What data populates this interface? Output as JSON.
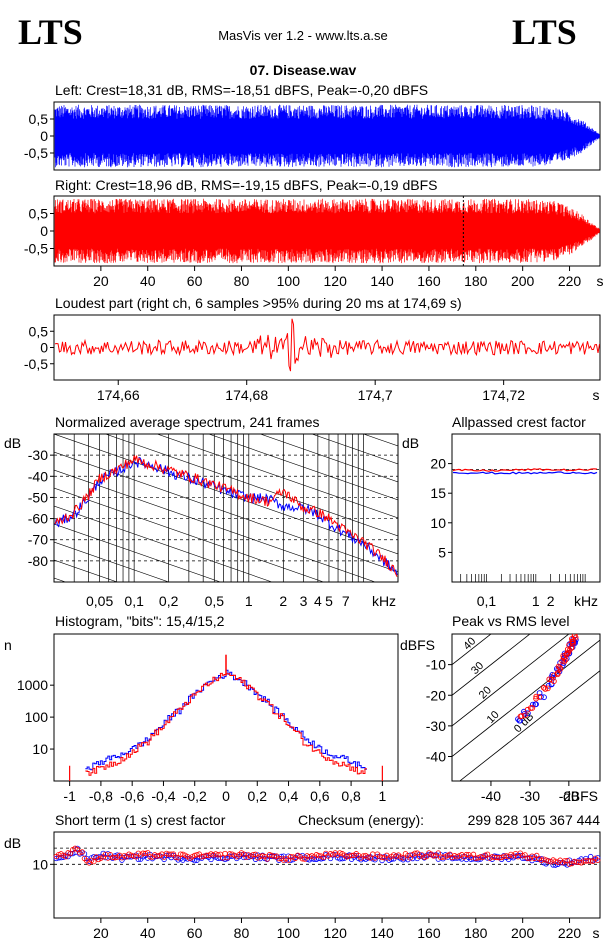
{
  "header": {
    "logo_left": "LTS",
    "logo_right": "LTS",
    "app_title": "MasVis ver 1.2 - www.lts.a.se",
    "file_name": "07. Disease.wav"
  },
  "colors": {
    "left": "#0000ff",
    "right": "#ff0000",
    "axis": "#000000"
  },
  "chart_data": [
    {
      "id": "left-waveform",
      "type": "area",
      "title": "Left: Crest=18,31 dB, RMS=-18,51 dBFS, Peak=-0,20 dBFS",
      "channel": "left",
      "ylim": [
        -1,
        1
      ],
      "y_ticks": [
        "0,5",
        "0",
        "-0,5"
      ],
      "y_tick_values": [
        0.5,
        0,
        -0.5
      ],
      "xlim": [
        0,
        233
      ],
      "envelope": {
        "x": [
          0,
          200,
          215,
          225,
          233
        ],
        "amplitude": [
          0.92,
          0.92,
          0.85,
          0.5,
          0.05
        ]
      }
    },
    {
      "id": "right-waveform",
      "type": "area",
      "title": "Right: Crest=18,96 dB, RMS=-19,15 dBFS, Peak=-0,19 dBFS",
      "channel": "right",
      "ylim": [
        -1,
        1
      ],
      "y_ticks": [
        "0,5",
        "0",
        "-0,5"
      ],
      "y_tick_values": [
        0.5,
        0,
        -0.5
      ],
      "xlim": [
        0,
        233
      ],
      "x_ticks": [
        "20",
        "40",
        "60",
        "80",
        "100",
        "120",
        "140",
        "160",
        "180",
        "200",
        "220",
        "s"
      ],
      "x_tick_values": [
        20,
        40,
        60,
        80,
        100,
        120,
        140,
        160,
        180,
        200,
        220
      ],
      "marker_x": 174.69,
      "envelope": {
        "x": [
          0,
          200,
          215,
          225,
          233
        ],
        "amplitude": [
          0.92,
          0.92,
          0.85,
          0.5,
          0.05
        ]
      }
    },
    {
      "id": "loudest-part",
      "type": "line",
      "title": "Loudest part (right ch, 6 samples >95% during 20 ms at 174,69 s)",
      "channel": "right",
      "ylim": [
        -1,
        1
      ],
      "y_ticks": [
        "0,5",
        "0",
        "-0,5"
      ],
      "y_tick_values": [
        0.5,
        0,
        -0.5
      ],
      "xlim": [
        174.65,
        174.735
      ],
      "x_ticks": [
        "174,66",
        "174,68",
        "174,7",
        "174,72",
        "s"
      ],
      "x_tick_values": [
        174.66,
        174.68,
        174.7,
        174.72
      ],
      "peak_x": 174.687,
      "peak_values": [
        0.92,
        -0.85
      ]
    },
    {
      "id": "average-spectrum",
      "type": "line",
      "title": "Normalized average spectrum, 241 frames",
      "ylabel": "dB",
      "xlabel": "kHz",
      "y_ticks": [
        "-30",
        "-40",
        "-50",
        "-60",
        "-70",
        "-80"
      ],
      "y_tick_values": [
        -30,
        -40,
        -50,
        -60,
        -70,
        -80
      ],
      "ylim": [
        -90,
        -20
      ],
      "x_ticks": [
        "0,05",
        "0,1",
        "0,2",
        "0,5",
        "1",
        "2",
        "3",
        "4",
        "5",
        "7",
        "kHz"
      ],
      "x_tick_values": [
        0.05,
        0.1,
        0.2,
        0.5,
        1,
        2,
        3,
        4,
        5,
        7
      ],
      "xlim": [
        0.02,
        20
      ],
      "x_log": true,
      "series": [
        {
          "channel": "left",
          "x": [
            0.02,
            0.03,
            0.04,
            0.05,
            0.07,
            0.1,
            0.15,
            0.2,
            0.3,
            0.5,
            0.7,
            1,
            1.5,
            2,
            3,
            4,
            5,
            7,
            10,
            15,
            20
          ],
          "y": [
            -63,
            -58,
            -50,
            -42,
            -38,
            -33,
            -35,
            -38,
            -41,
            -45,
            -48,
            -50,
            -51,
            -54,
            -55,
            -58,
            -62,
            -67,
            -72,
            -80,
            -86
          ]
        },
        {
          "channel": "right",
          "x": [
            0.02,
            0.03,
            0.04,
            0.05,
            0.07,
            0.1,
            0.15,
            0.2,
            0.3,
            0.5,
            0.7,
            1,
            1.5,
            2,
            3,
            4,
            5,
            7,
            10,
            15,
            20
          ],
          "y": [
            -63,
            -57,
            -49,
            -41,
            -37,
            -32,
            -35,
            -37,
            -40,
            -44,
            -47,
            -50,
            -52,
            -47,
            -55,
            -57,
            -60,
            -66,
            -71,
            -79,
            -86
          ]
        }
      ]
    },
    {
      "id": "allpassed-crest",
      "type": "line",
      "title": "Allpassed crest factor",
      "ylabel": "dB",
      "xlabel": "kHz",
      "y_ticks": [
        "20",
        "15",
        "10",
        "5"
      ],
      "y_tick_values": [
        20,
        15,
        10,
        5
      ],
      "ylim": [
        0,
        25
      ],
      "x_ticks": [
        "0,1",
        "1",
        "2",
        "kHz"
      ],
      "x_tick_values": [
        0.1,
        1,
        2
      ],
      "xlim": [
        0.02,
        20
      ],
      "x_log": true,
      "series": [
        {
          "channel": "left",
          "x": [
            0.02,
            0.1,
            1,
            5,
            20
          ],
          "y": [
            18.5,
            18.4,
            18.4,
            18.5,
            18.4
          ]
        },
        {
          "channel": "right",
          "x": [
            0.02,
            0.1,
            1,
            5,
            20
          ],
          "y": [
            18.9,
            18.8,
            19.0,
            18.9,
            19.0
          ]
        }
      ],
      "reference_y": 19
    },
    {
      "id": "histogram",
      "type": "line",
      "title": "Histogram, \"bits\": 15,4/15,2",
      "ylabel": "n",
      "y_log": true,
      "y_ticks": [
        "1000",
        "100",
        "10"
      ],
      "y_tick_values": [
        1000,
        100,
        10
      ],
      "ylim": [
        1,
        40000
      ],
      "x_ticks": [
        "-1",
        "-0,8",
        "-0,6",
        "-0,4",
        "-0,2",
        "0",
        "0,2",
        "0,4",
        "0,6",
        "0,8",
        "1"
      ],
      "x_tick_values": [
        -1,
        -0.8,
        -0.6,
        -0.4,
        -0.2,
        0,
        0.2,
        0.4,
        0.6,
        0.8,
        1
      ],
      "xlim": [
        -1.1,
        1.1
      ],
      "series": [
        {
          "channel": "left",
          "x": [
            -0.85,
            -0.7,
            -0.6,
            -0.5,
            -0.4,
            -0.3,
            -0.2,
            -0.1,
            0,
            0.1,
            0.2,
            0.3,
            0.4,
            0.5,
            0.6,
            0.7,
            0.85
          ],
          "y": [
            3,
            6,
            10,
            20,
            60,
            170,
            500,
            1300,
            2400,
            1300,
            500,
            180,
            60,
            22,
            10,
            6,
            3
          ]
        },
        {
          "channel": "right",
          "x": [
            -0.85,
            -0.7,
            -0.6,
            -0.5,
            -0.4,
            -0.3,
            -0.2,
            -0.1,
            0,
            0.1,
            0.2,
            0.3,
            0.4,
            0.5,
            0.6,
            0.7,
            0.85
          ],
          "y": [
            2,
            4,
            8,
            18,
            50,
            160,
            480,
            1250,
            2300,
            1250,
            480,
            160,
            50,
            15,
            7,
            4,
            2
          ]
        }
      ],
      "center_spike": 9000
    },
    {
      "id": "peak-vs-rms",
      "type": "scatter",
      "title": "Peak vs RMS level",
      "ylabel": "dBFS",
      "xlabel": "dBFS",
      "y_ticks": [
        "-10",
        "-20",
        "-30",
        "-40"
      ],
      "y_tick_values": [
        -10,
        -20,
        -30,
        -40
      ],
      "ylim": [
        -48,
        0
      ],
      "x_ticks": [
        "-40",
        "-30",
        "-20"
      ],
      "x_tick_values": [
        -40,
        -30,
        -20
      ],
      "xlim": [
        -50,
        -12
      ],
      "diagonal_labels": [
        "40",
        "30",
        "20",
        "10",
        "0 dB"
      ],
      "diagonal_offsets": [
        40,
        30,
        20,
        10,
        0
      ],
      "series": [
        {
          "channel": "left",
          "x": [
            -33,
            -31,
            -29,
            -27,
            -25,
            -24,
            -23,
            -22,
            -21,
            -20.5,
            -20,
            -19.5,
            -19,
            -18.5
          ],
          "y": [
            -28,
            -26,
            -23,
            -20,
            -17,
            -14,
            -12,
            -10,
            -8,
            -7,
            -6,
            -4,
            -3,
            -2
          ]
        },
        {
          "channel": "right",
          "x": [
            -32,
            -30,
            -28,
            -26,
            -24.5,
            -23.5,
            -22.5,
            -21.5,
            -21,
            -20.5,
            -20,
            -19.5,
            -19,
            -18.5
          ],
          "y": [
            -27,
            -24,
            -21,
            -18,
            -15,
            -13,
            -11,
            -9,
            -7,
            -6,
            -5,
            -3,
            -2,
            -1
          ]
        }
      ]
    },
    {
      "id": "short-term-crest",
      "type": "scatter",
      "title": "Short term (1 s) crest factor",
      "checksum_label": "Checksum (energy):",
      "checksum_value": "299 828 105 367 444",
      "ylabel": "dB",
      "y_ticks": [
        "10"
      ],
      "y_tick_values": [
        10
      ],
      "y_log": true,
      "ylim": [
        1,
        40
      ],
      "x_ticks": [
        "20",
        "40",
        "60",
        "80",
        "100",
        "120",
        "140",
        "160",
        "180",
        "200",
        "220",
        "s"
      ],
      "x_tick_values": [
        20,
        40,
        60,
        80,
        100,
        120,
        140,
        160,
        180,
        200,
        220
      ],
      "xlim": [
        0,
        233
      ],
      "reference_lines_db": [
        10,
        20
      ],
      "series": [
        {
          "channel": "left",
          "x": [
            5,
            10,
            15,
            20,
            30,
            40,
            60,
            80,
            100,
            120,
            140,
            160,
            180,
            200,
            215,
            225,
            230
          ],
          "y": [
            14,
            18,
            12,
            15,
            13,
            14,
            13,
            14,
            13,
            14,
            13,
            14,
            13,
            14,
            10,
            12,
            13
          ]
        },
        {
          "channel": "right",
          "x": [
            5,
            10,
            15,
            20,
            30,
            40,
            60,
            80,
            100,
            120,
            140,
            160,
            180,
            200,
            215,
            225,
            230
          ],
          "y": [
            15,
            19,
            11,
            14,
            14,
            15,
            14,
            15,
            13,
            15,
            14,
            15,
            14,
            15,
            11,
            11,
            12
          ]
        }
      ]
    }
  ]
}
